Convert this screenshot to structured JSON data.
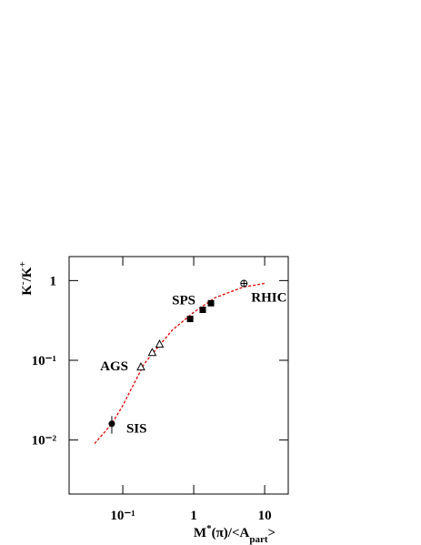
{
  "chart_data": {
    "type": "scatter",
    "log_x": true,
    "log_y": true,
    "x_label_parts": [
      {
        "text": "M"
      },
      {
        "text": "*",
        "script": "super"
      },
      {
        "text": "(π)/<A"
      },
      {
        "text": "part",
        "script": "sub"
      },
      {
        "text": ">"
      }
    ],
    "y_label_parts": [
      {
        "text": "K"
      },
      {
        "text": "-",
        "script": "super"
      },
      {
        "text": "/K"
      },
      {
        "text": "+",
        "script": "super"
      }
    ],
    "xlim": [
      0.0175,
      21.5
    ],
    "ylim": [
      0.0021,
      2
    ],
    "xticks": [
      {
        "value": 0.1,
        "label": "10⁻¹"
      },
      1,
      10
    ],
    "yticks": [
      {
        "value": 0.01,
        "label": "10⁻²"
      },
      {
        "value": 0.1,
        "label": "10⁻¹"
      },
      1
    ],
    "series": [
      {
        "name": "SIS",
        "marker": "filled-circle",
        "color": "#000000",
        "x": [
          0.07
        ],
        "values": [
          0.016
        ],
        "errors": [
          0.004
        ]
      },
      {
        "name": "AGS",
        "marker": "open-triangle",
        "color": "#000000",
        "x": [
          0.18,
          0.26,
          0.33
        ],
        "values": [
          0.083,
          0.126,
          0.16
        ]
      },
      {
        "name": "SPS",
        "marker": "filled-square",
        "color": "#000000",
        "x": [
          0.89,
          1.34,
          1.75
        ],
        "values": [
          0.33,
          0.43,
          0.52
        ]
      },
      {
        "name": "RHIC",
        "marker": "open-cross-circle",
        "color": "#000000",
        "x": [
          5.1
        ],
        "values": [
          0.92
        ]
      }
    ],
    "fit": {
      "color": "#e00000",
      "x": [
        0.04,
        0.07,
        0.1,
        0.2,
        0.3,
        0.5,
        1,
        2,
        5,
        10
      ],
      "values": [
        0.009,
        0.016,
        0.027,
        0.09,
        0.14,
        0.24,
        0.4,
        0.61,
        0.83,
        0.92
      ]
    }
  }
}
